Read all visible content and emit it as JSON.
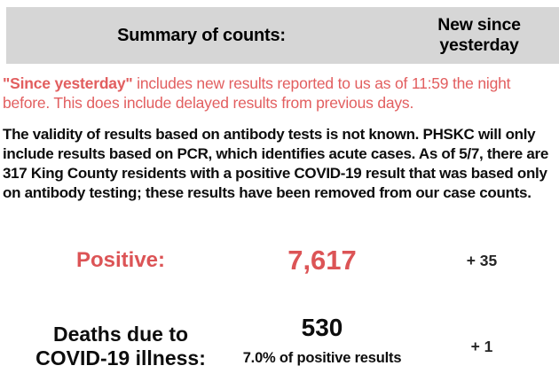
{
  "header": {
    "summary_label": "Summary of counts:",
    "new_since_label": "New since yesterday"
  },
  "notes": {
    "since_yesterday_lead": "\"Since yesterday\"",
    "since_yesterday_rest": " includes new results reported to us as of 11:59 the night before. This does include delayed results from previous days.",
    "antibody_note": "The validity of results based on antibody tests is not known. PHSKC will only include results based on PCR, which identifies acute cases. As of 5/7, there are 317 King County residents with a positive COVID-19 result that was based only on antibody testing; these results have been removed from our case counts."
  },
  "rows": [
    {
      "label": "Positive:",
      "value": "7,617",
      "change": "+ 35",
      "emphasis": "red"
    },
    {
      "label": "Deaths due to COVID-19 illness:",
      "value": "530",
      "sub": "7.0% of positive results",
      "change": "+ 1",
      "emphasis": "black"
    }
  ],
  "colors": {
    "header_gray": "#d6d6d6",
    "note_red": "#e25e5f",
    "accent_red": "#dc5456",
    "text_black": "#0d0d0d",
    "change_black": "#262626"
  }
}
